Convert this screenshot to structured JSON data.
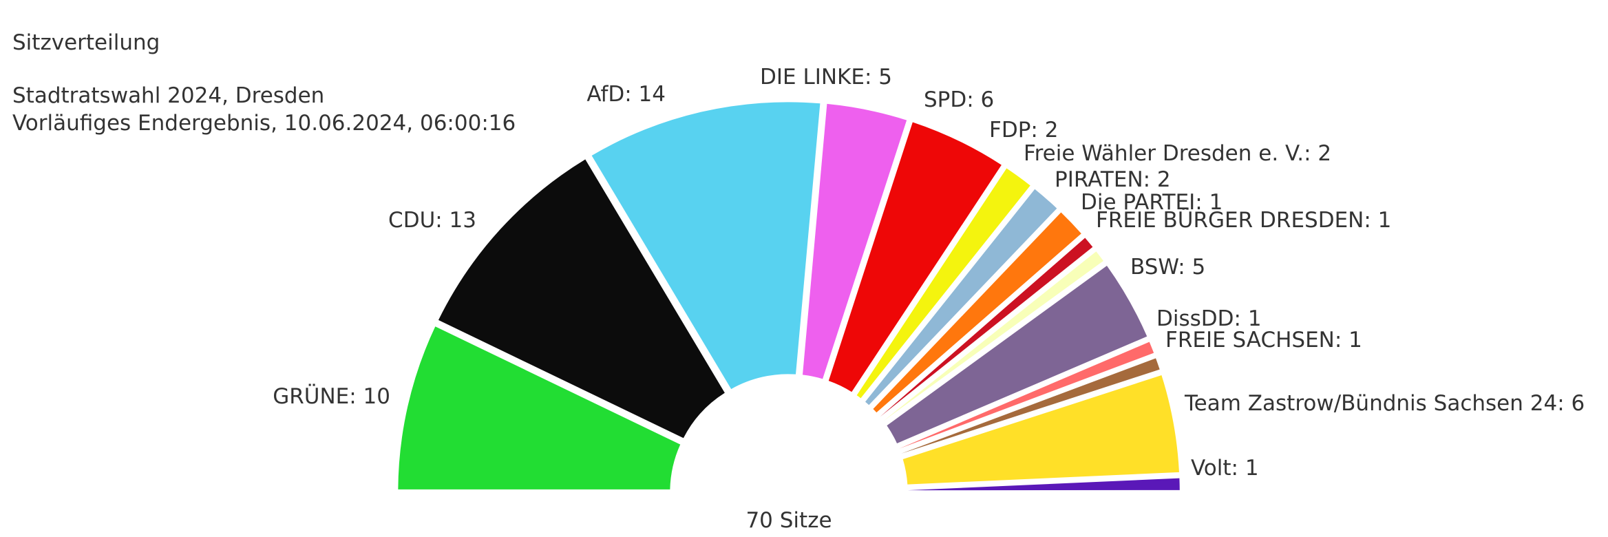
{
  "chart_data": {
    "type": "parliament",
    "title": "Sitzverteilung",
    "subtitle_lines": [
      "Stadtratswahl 2024, Dresden",
      "Vorläufiges Endergebnis, 10.06.2024, 06:00:16"
    ],
    "total_label": "70 Sitze",
    "total": 70,
    "series": [
      {
        "name": "GRÜNE",
        "seats": 10,
        "color": "#22dd33",
        "label": "GRÜNE: 10"
      },
      {
        "name": "CDU",
        "seats": 13,
        "color": "#0c0c0c",
        "label": "CDU: 13"
      },
      {
        "name": "AfD",
        "seats": 14,
        "color": "#58d2f0",
        "label": "AfD: 14"
      },
      {
        "name": "DIE LINKE",
        "seats": 5,
        "color": "#ee60ee",
        "label": "DIE LINKE: 5"
      },
      {
        "name": "SPD",
        "seats": 6,
        "color": "#ee0707",
        "label": "SPD: 6"
      },
      {
        "name": "FDP",
        "seats": 2,
        "color": "#f4f40e",
        "label": "FDP: 2"
      },
      {
        "name": "Freie Wähler Dresden e. V.",
        "seats": 2,
        "color": "#8fb8d6",
        "label": "Freie Wähler Dresden e. V.: 2"
      },
      {
        "name": "PIRATEN",
        "seats": 2,
        "color": "#ff770d",
        "label": "PIRATEN: 2"
      },
      {
        "name": "Die PARTEI",
        "seats": 1,
        "color": "#cc1122",
        "label": "Die PARTEI: 1"
      },
      {
        "name": "FREIE BÜRGER DRESDEN",
        "seats": 1,
        "color": "#f8ffb8",
        "label": "FREIE BÜRGER DRESDEN: 1"
      },
      {
        "name": "BSW",
        "seats": 5,
        "color": "#7e6595",
        "label": "BSW: 5"
      },
      {
        "name": "DissDD",
        "seats": 1,
        "color": "#ff6a6a",
        "label": "DissDD: 1"
      },
      {
        "name": "FREIE SACHSEN",
        "seats": 1,
        "color": "#a56a3c",
        "label": "FREIE SACHSEN: 1"
      },
      {
        "name": "Team Zastrow/Bündnis Sachsen 24",
        "seats": 6,
        "color": "#ffe028",
        "label": "Team Zastrow/Bündnis Sachsen 24: 6"
      },
      {
        "name": "Volt",
        "seats": 1,
        "color": "#5a18b8",
        "label": "Volt: 1"
      }
    ]
  }
}
